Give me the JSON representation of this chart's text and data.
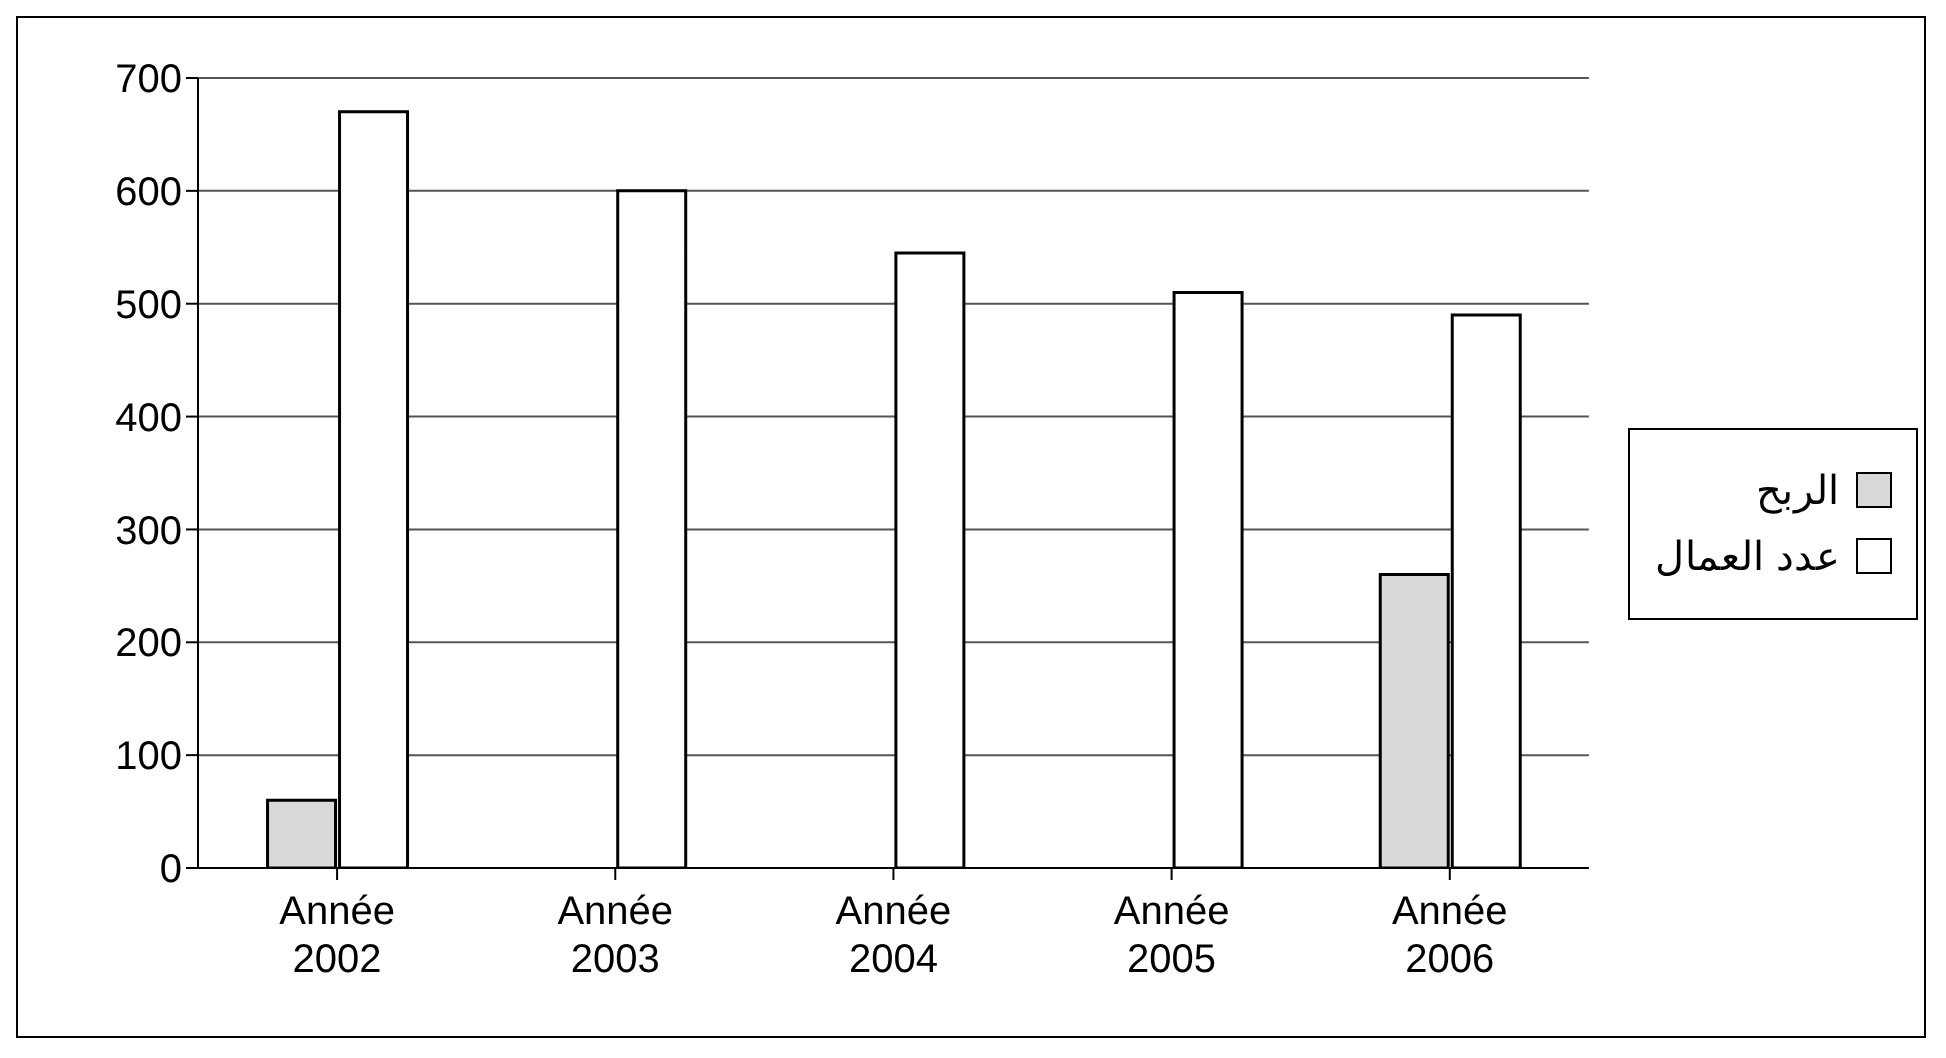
{
  "chart_data": {
    "type": "bar",
    "categories": [
      "Année 2002",
      "Année 2003",
      "Année 2004",
      "Année 2005",
      "Année 2006"
    ],
    "series": [
      {
        "name": "الربح",
        "color": "#d9d9d9",
        "values": [
          60,
          0,
          0,
          0,
          260
        ]
      },
      {
        "name": "عدد العمال",
        "color": "#ffffff",
        "values": [
          670,
          600,
          545,
          510,
          490
        ]
      }
    ],
    "ylim": [
      0,
      700
    ],
    "yticks": [
      0,
      100,
      200,
      300,
      400,
      500,
      600,
      700
    ],
    "grid": "y",
    "legend": "right"
  }
}
